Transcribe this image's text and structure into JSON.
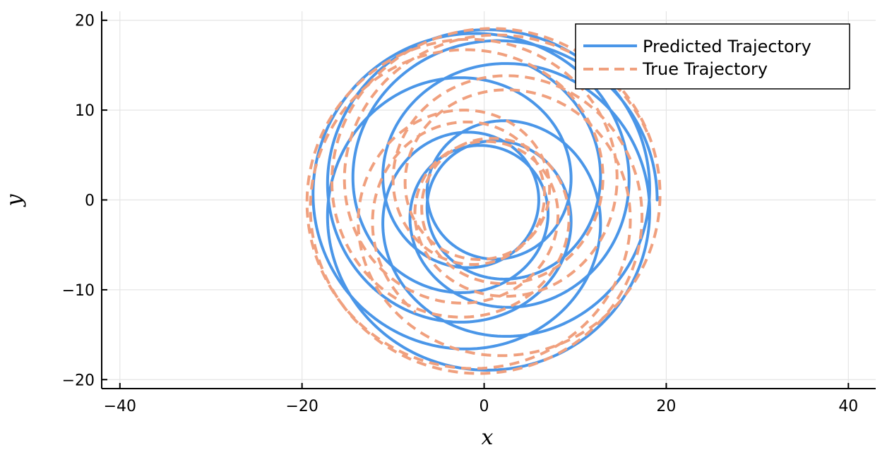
{
  "chart_data": {
    "type": "line",
    "xlabel": "x",
    "ylabel": "y",
    "xlim": [
      -42,
      43
    ],
    "ylim": [
      -21,
      21
    ],
    "xticks": [
      -40,
      -20,
      0,
      20,
      40
    ],
    "yticks": [
      -20,
      -10,
      0,
      10,
      20
    ],
    "xtick_labels": [
      "−40",
      "−20",
      "0",
      "20",
      "40"
    ],
    "ytick_labels": [
      "−20",
      "−10",
      "0",
      "10",
      "20"
    ],
    "grid": true,
    "legend_position": "top-right",
    "series": [
      {
        "name": "Predicted Trajectory",
        "color": "#4a96e8",
        "style": "solid",
        "center_x": 0,
        "center_y": 0,
        "radius_base": 12.5,
        "radius_amplitude": 6.5,
        "wobble_period": 2.4,
        "phase_start": 0.0,
        "turns": 9.2
      },
      {
        "name": "True Trajectory",
        "color": "#f0a07e",
        "style": "dashed",
        "center_x": 0,
        "center_y": 0,
        "radius_base": 13.0,
        "radius_amplitude": 6.5,
        "wobble_period": 2.55,
        "phase_start": 0.4,
        "turns": 9.6
      }
    ]
  }
}
